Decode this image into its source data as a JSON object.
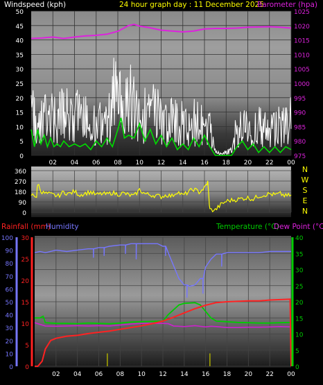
{
  "header": {
    "left_label": "Windspeed (kph)",
    "title": "24 hour graph day : 11 December 2025",
    "right_label": "Barometer (hpa)"
  },
  "lower_header": {
    "rain_label": "Rainfall (mm)",
    "humidity_label": "Humidity",
    "temp_label": "Temperature (°C)",
    "dew_label": "Dew Point (°C)"
  },
  "colors": {
    "wind_avg": "#00dd00",
    "wind_gust": "#ffffff",
    "barometer": "#dd22dd",
    "direction": "#ffff00",
    "rain": "#ff2222",
    "humidity": "#7777ff",
    "temperature": "#00cc00",
    "dewpoint": "#cc22cc",
    "rain_rate": "#aaaa00"
  },
  "chart_data": [
    {
      "type": "line",
      "name": "wind-baro",
      "x_ticks": [
        "02",
        "04",
        "06",
        "08",
        "10",
        "12",
        "14",
        "16",
        "18",
        "20",
        "22",
        "00"
      ],
      "y_left_ticks": [
        "0",
        "5",
        "10",
        "15",
        "20",
        "25",
        "30",
        "35",
        "40",
        "45",
        "50"
      ],
      "y_right_ticks": [
        "975",
        "980",
        "985",
        "990",
        "995",
        "1000",
        "1005",
        "1010",
        "1015",
        "1020",
        "1025"
      ],
      "ylim_left": [
        0,
        50
      ],
      "ylim_right": [
        975,
        1025
      ],
      "xlim_hours": [
        0,
        24
      ],
      "gust_envelope": [
        [
          0,
          26
        ],
        [
          0.5,
          20
        ],
        [
          1,
          19
        ],
        [
          1.5,
          24
        ],
        [
          2,
          23
        ],
        [
          2.5,
          22
        ],
        [
          3,
          24
        ],
        [
          3.5,
          26
        ],
        [
          4,
          25
        ],
        [
          4.5,
          22
        ],
        [
          5,
          21
        ],
        [
          5.5,
          18
        ],
        [
          6,
          17
        ],
        [
          6.5,
          20
        ],
        [
          7,
          19
        ],
        [
          7.5,
          33
        ],
        [
          8,
          40
        ],
        [
          8.5,
          25
        ],
        [
          9,
          30
        ],
        [
          9.5,
          35
        ],
        [
          10,
          22
        ],
        [
          10.5,
          24
        ],
        [
          11,
          28
        ],
        [
          11.5,
          26
        ],
        [
          12,
          22
        ],
        [
          12.5,
          19
        ],
        [
          13,
          22
        ],
        [
          13.5,
          18
        ],
        [
          14,
          19
        ],
        [
          14.5,
          21
        ],
        [
          15,
          20
        ],
        [
          15.5,
          22
        ],
        [
          16,
          16
        ],
        [
          16.5,
          18
        ],
        [
          17,
          2
        ],
        [
          17.5,
          1
        ],
        [
          18,
          2
        ],
        [
          18.5,
          3
        ],
        [
          19,
          17
        ],
        [
          19.5,
          15
        ],
        [
          20,
          18
        ],
        [
          20.5,
          16
        ],
        [
          21,
          17
        ],
        [
          21.5,
          19
        ],
        [
          22,
          14
        ],
        [
          22.5,
          15
        ],
        [
          23,
          19
        ],
        [
          23.5,
          20
        ],
        [
          24,
          21
        ]
      ],
      "avg": [
        [
          0,
          9
        ],
        [
          0.3,
          3
        ],
        [
          0.6,
          9
        ],
        [
          0.9,
          4
        ],
        [
          1.2,
          7
        ],
        [
          1.5,
          3
        ],
        [
          1.8,
          6
        ],
        [
          2.1,
          3
        ],
        [
          2.4,
          4
        ],
        [
          2.7,
          3
        ],
        [
          3,
          5
        ],
        [
          3.5,
          3
        ],
        [
          4,
          4
        ],
        [
          4.5,
          3
        ],
        [
          5,
          4
        ],
        [
          5.5,
          2
        ],
        [
          6,
          5
        ],
        [
          6.5,
          3
        ],
        [
          7,
          6
        ],
        [
          7.5,
          3
        ],
        [
          8,
          9
        ],
        [
          8.3,
          13
        ],
        [
          8.6,
          6
        ],
        [
          9,
          7
        ],
        [
          9.5,
          6
        ],
        [
          10,
          11
        ],
        [
          10.5,
          5
        ],
        [
          11,
          9
        ],
        [
          11.5,
          4
        ],
        [
          12,
          7
        ],
        [
          12.5,
          3
        ],
        [
          13,
          6
        ],
        [
          13.5,
          2
        ],
        [
          14,
          4
        ],
        [
          14.5,
          2
        ],
        [
          15,
          6
        ],
        [
          15.5,
          3
        ],
        [
          16,
          7
        ],
        [
          16.5,
          3
        ],
        [
          17,
          0
        ],
        [
          17.5,
          0
        ],
        [
          18,
          0
        ],
        [
          18.5,
          0
        ],
        [
          19,
          3
        ],
        [
          19.5,
          5
        ],
        [
          20,
          2
        ],
        [
          20.5,
          4
        ],
        [
          21,
          1
        ],
        [
          21.5,
          3
        ],
        [
          22,
          1
        ],
        [
          22.5,
          3
        ],
        [
          23,
          1
        ],
        [
          23.5,
          3
        ],
        [
          24,
          2
        ]
      ],
      "barometer": [
        [
          0,
          1015.5
        ],
        [
          1,
          1015.7
        ],
        [
          2,
          1016
        ],
        [
          3,
          1015.5
        ],
        [
          4,
          1016
        ],
        [
          5,
          1016.4
        ],
        [
          6,
          1016.6
        ],
        [
          7,
          1017
        ],
        [
          8,
          1018
        ],
        [
          8.5,
          1019
        ],
        [
          9,
          1020
        ],
        [
          9.5,
          1020.4
        ],
        [
          10,
          1019.8
        ],
        [
          11,
          1019.2
        ],
        [
          12,
          1018.4
        ],
        [
          13,
          1018.1
        ],
        [
          14,
          1017.8
        ],
        [
          15,
          1018.1
        ],
        [
          16,
          1018.8
        ],
        [
          17,
          1019
        ],
        [
          18,
          1019
        ],
        [
          19,
          1019.1
        ],
        [
          20,
          1019.4
        ],
        [
          21,
          1019.5
        ],
        [
          22,
          1019.6
        ],
        [
          23,
          1019.4
        ],
        [
          24,
          1019.1
        ]
      ]
    },
    {
      "type": "scatter",
      "name": "wind-direction",
      "y_ticks": [
        "0",
        "90",
        "180",
        "270",
        "360"
      ],
      "y_right_labels": [
        "N",
        "W",
        "S",
        "E",
        "N"
      ],
      "ylim": [
        0,
        360
      ],
      "xlim_hours": [
        0,
        24
      ],
      "direction": [
        [
          0,
          150
        ],
        [
          0.5,
          140
        ],
        [
          0.6,
          250
        ],
        [
          1,
          170
        ],
        [
          1.5,
          160
        ],
        [
          2,
          150
        ],
        [
          2.5,
          140
        ],
        [
          3,
          175
        ],
        [
          3.5,
          160
        ],
        [
          4,
          180
        ],
        [
          4.5,
          150
        ],
        [
          5,
          165
        ],
        [
          5.5,
          175
        ],
        [
          6,
          150
        ],
        [
          6.5,
          160
        ],
        [
          7,
          155
        ],
        [
          7.5,
          170
        ],
        [
          8,
          155
        ],
        [
          8.5,
          165
        ],
        [
          9,
          150
        ],
        [
          9.5,
          140
        ],
        [
          10,
          195
        ],
        [
          10.5,
          160
        ],
        [
          11,
          150
        ],
        [
          11.5,
          145
        ],
        [
          12,
          135
        ],
        [
          12.5,
          150
        ],
        [
          13,
          140
        ],
        [
          13.5,
          180
        ],
        [
          14,
          145
        ],
        [
          14.5,
          175
        ],
        [
          15,
          200
        ],
        [
          15.5,
          175
        ],
        [
          16,
          210
        ],
        [
          16.3,
          260
        ],
        [
          16.5,
          20
        ],
        [
          17,
          20
        ],
        [
          17.5,
          65
        ],
        [
          18,
          95
        ],
        [
          18.5,
          105
        ],
        [
          19,
          110
        ],
        [
          19.5,
          120
        ],
        [
          20,
          125
        ],
        [
          20.5,
          115
        ],
        [
          21,
          140
        ],
        [
          21.5,
          150
        ],
        [
          22,
          160
        ],
        [
          22.5,
          150
        ],
        [
          23,
          160
        ],
        [
          23.5,
          140
        ],
        [
          24,
          150
        ]
      ]
    },
    {
      "type": "line",
      "name": "rain-humidity-temp",
      "y_left_outer_ticks": [
        "0",
        "10",
        "20",
        "30",
        "40",
        "50",
        "60",
        "70",
        "80",
        "90",
        "100"
      ],
      "y_left_inner_ticks": [
        "0",
        "5",
        "10",
        "15",
        "20",
        "25",
        "30"
      ],
      "y_right_ticks": [
        "0",
        "5",
        "10",
        "15",
        "20",
        "25",
        "30",
        "35",
        "40"
      ],
      "ylim_humidity": [
        0,
        100
      ],
      "ylim_rain": [
        0,
        30
      ],
      "ylim_temp": [
        0,
        40
      ],
      "xlim_hours": [
        0,
        24
      ],
      "humidity": [
        [
          0,
          88
        ],
        [
          0.5,
          89
        ],
        [
          1,
          88
        ],
        [
          2,
          90
        ],
        [
          3,
          89
        ],
        [
          4,
          90
        ],
        [
          5,
          91
        ],
        [
          6,
          92
        ],
        [
          7,
          93
        ],
        [
          8,
          94
        ],
        [
          9,
          95
        ],
        [
          10,
          95
        ],
        [
          11,
          95
        ],
        [
          11.5,
          95
        ],
        [
          12,
          93
        ],
        [
          12.5,
          88
        ],
        [
          13,
          78
        ],
        [
          13.5,
          68
        ],
        [
          14,
          63
        ],
        [
          14.5,
          62
        ],
        [
          15,
          63
        ],
        [
          15.5,
          68
        ],
        [
          16,
          77
        ],
        [
          16.5,
          83
        ],
        [
          17,
          87
        ],
        [
          18,
          88
        ],
        [
          19,
          88
        ],
        [
          20,
          88
        ],
        [
          21,
          88
        ],
        [
          22,
          89
        ],
        [
          23,
          89
        ],
        [
          24,
          89
        ]
      ],
      "rain": [
        [
          0,
          0
        ],
        [
          0.3,
          0
        ],
        [
          0.7,
          1.2
        ],
        [
          1,
          4
        ],
        [
          1.5,
          6
        ],
        [
          2,
          6.5
        ],
        [
          3,
          7
        ],
        [
          4,
          7.2
        ],
        [
          5,
          7.6
        ],
        [
          6,
          7.9
        ],
        [
          7,
          8.2
        ],
        [
          8,
          8.6
        ],
        [
          9,
          9
        ],
        [
          10,
          9.4
        ],
        [
          11,
          9.9
        ],
        [
          12,
          10.5
        ],
        [
          13,
          11.4
        ],
        [
          14,
          12.4
        ],
        [
          15,
          13.4
        ],
        [
          16,
          14.2
        ],
        [
          17,
          14.8
        ],
        [
          18,
          15
        ],
        [
          19,
          15.1
        ],
        [
          20,
          15.2
        ],
        [
          21,
          15.2
        ],
        [
          22,
          15.4
        ],
        [
          23,
          15.5
        ],
        [
          23.9,
          15.6
        ],
        [
          24,
          0
        ]
      ],
      "temperature": [
        [
          0,
          15
        ],
        [
          0.5,
          15
        ],
        [
          0.8,
          15.5
        ],
        [
          1,
          13.5
        ],
        [
          2,
          13.3
        ],
        [
          3,
          13.3
        ],
        [
          4,
          13.2
        ],
        [
          5,
          13.4
        ],
        [
          6,
          13.3
        ],
        [
          7,
          13.2
        ],
        [
          8,
          13.4
        ],
        [
          9,
          13.7
        ],
        [
          10,
          13.8
        ],
        [
          11,
          13.9
        ],
        [
          12,
          14
        ],
        [
          12.5,
          16
        ],
        [
          13,
          17.5
        ],
        [
          13.5,
          19
        ],
        [
          14,
          19.5
        ],
        [
          15,
          19.7
        ],
        [
          15.5,
          19
        ],
        [
          16,
          17
        ],
        [
          16.5,
          15
        ],
        [
          17,
          14
        ],
        [
          18,
          13.8
        ],
        [
          19,
          13.6
        ],
        [
          20,
          13.5
        ],
        [
          21,
          13.4
        ],
        [
          22,
          13.4
        ],
        [
          23,
          13.5
        ],
        [
          24,
          13.6
        ]
      ],
      "dewpoint": [
        [
          0,
          13.5
        ],
        [
          1,
          12.5
        ],
        [
          2,
          12.4
        ],
        [
          3,
          12.5
        ],
        [
          4,
          12.6
        ],
        [
          5,
          12.5
        ],
        [
          6,
          12.6
        ],
        [
          7,
          12.5
        ],
        [
          8,
          12.8
        ],
        [
          9,
          13.1
        ],
        [
          10,
          13.3
        ],
        [
          11,
          13.3
        ],
        [
          12,
          13.3
        ],
        [
          12.5,
          13.2
        ],
        [
          13,
          12.5
        ],
        [
          13.5,
          12.4
        ],
        [
          14,
          12.3
        ],
        [
          15,
          12.6
        ],
        [
          16,
          12.2
        ],
        [
          16.5,
          12.4
        ],
        [
          17,
          12.3
        ],
        [
          18,
          12
        ],
        [
          19,
          12
        ],
        [
          20,
          12.1
        ],
        [
          21,
          12.1
        ],
        [
          22,
          12.2
        ],
        [
          23,
          12.3
        ],
        [
          24,
          12.2
        ]
      ],
      "rain_rate_bars": [
        [
          6.8,
          3
        ],
        [
          16.4,
          3
        ]
      ]
    }
  ]
}
